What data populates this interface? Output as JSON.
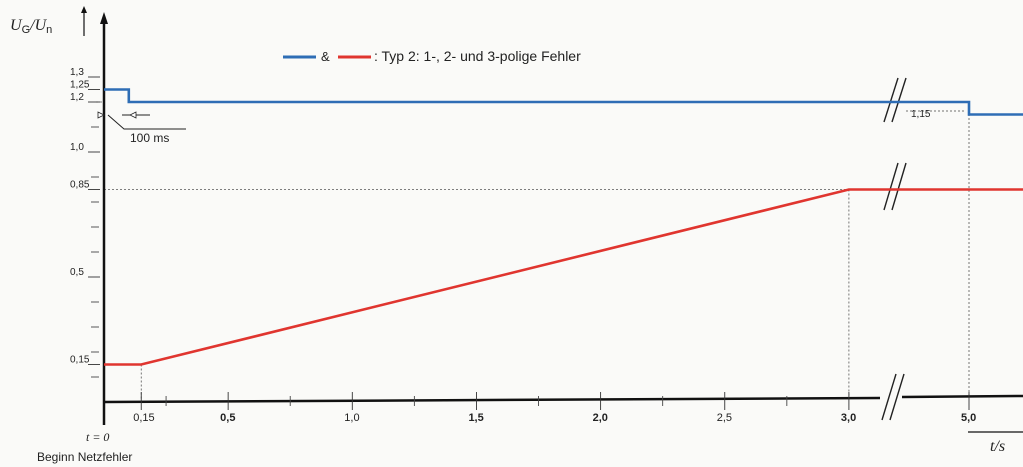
{
  "chart_data": {
    "type": "line",
    "ylabel_main": "U",
    "ylabel_sub1": "G",
    "ylabel_sep": "/",
    "ylabel_main2": "U",
    "ylabel_sub2": "n",
    "xlabel": "t/s",
    "origin_label": "t = 0",
    "origin_caption": "Beginn Netzfehler",
    "legend": {
      "amp": "&",
      "text": ": Typ 2: 1-, 2- und 3-polige Fehler"
    },
    "annotation_100ms": "100 ms",
    "annotation_115": "1,15",
    "colors": {
      "upper": "#2e6db5",
      "lower": "#e0352f"
    },
    "y_ticks": [
      {
        "v": 1.3,
        "label": "1,3"
      },
      {
        "v": 1.25,
        "label": "1,25"
      },
      {
        "v": 1.2,
        "label": "1,2"
      },
      {
        "v": 1.0,
        "label": "1,0"
      },
      {
        "v": 0.85,
        "label": "0,85"
      },
      {
        "v": 0.5,
        "label": "0,5"
      },
      {
        "v": 0.15,
        "label": "0,15"
      }
    ],
    "x_ticks": [
      {
        "v": 0.15,
        "label": "0,15",
        "bold": false
      },
      {
        "v": 0.5,
        "label": "0,5",
        "bold": true
      },
      {
        "v": 1.0,
        "label": "1,0",
        "bold": false
      },
      {
        "v": 1.5,
        "label": "1,5",
        "bold": true
      },
      {
        "v": 2.0,
        "label": "2,0",
        "bold": true
      },
      {
        "v": 2.5,
        "label": "2,5",
        "bold": false
      },
      {
        "v": 3.0,
        "label": "3,0",
        "bold": true
      },
      {
        "v": 5.0,
        "label": "5,0",
        "bold": true
      }
    ],
    "series": [
      {
        "key": "upper",
        "points": [
          [
            0,
            1.25
          ],
          [
            0.1,
            1.25
          ],
          [
            0.1,
            1.2
          ],
          [
            5.0,
            1.2
          ],
          [
            5.0,
            1.15
          ],
          [
            6.0,
            1.15
          ]
        ]
      },
      {
        "key": "lower",
        "points": [
          [
            0,
            0.15
          ],
          [
            0.15,
            0.15
          ],
          [
            3.0,
            0.85
          ],
          [
            6.0,
            0.85
          ]
        ]
      }
    ]
  }
}
